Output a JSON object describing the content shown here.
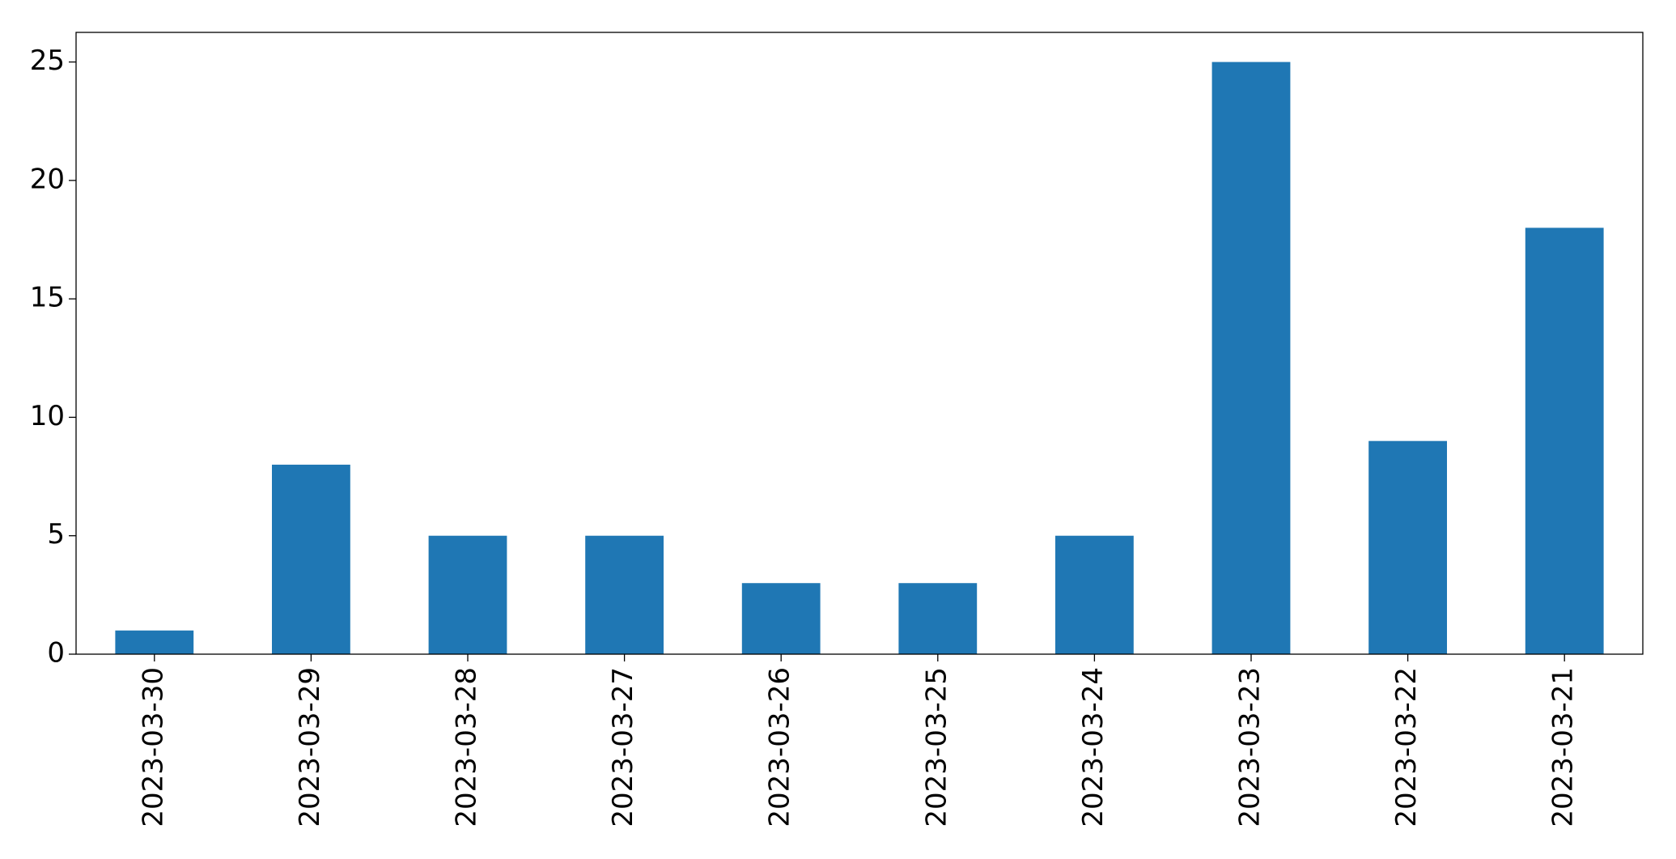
{
  "chart_data": {
    "type": "bar",
    "categories": [
      "2023-03-30",
      "2023-03-29",
      "2023-03-28",
      "2023-03-27",
      "2023-03-26",
      "2023-03-25",
      "2023-03-24",
      "2023-03-23",
      "2023-03-22",
      "2023-03-21"
    ],
    "values": [
      1,
      8,
      5,
      5,
      3,
      3,
      5,
      25,
      9,
      18
    ],
    "color": "#1f77b4",
    "ylim": [
      0,
      26.25
    ],
    "yticks": [
      0,
      5,
      10,
      15,
      20,
      25
    ],
    "grid": false
  }
}
